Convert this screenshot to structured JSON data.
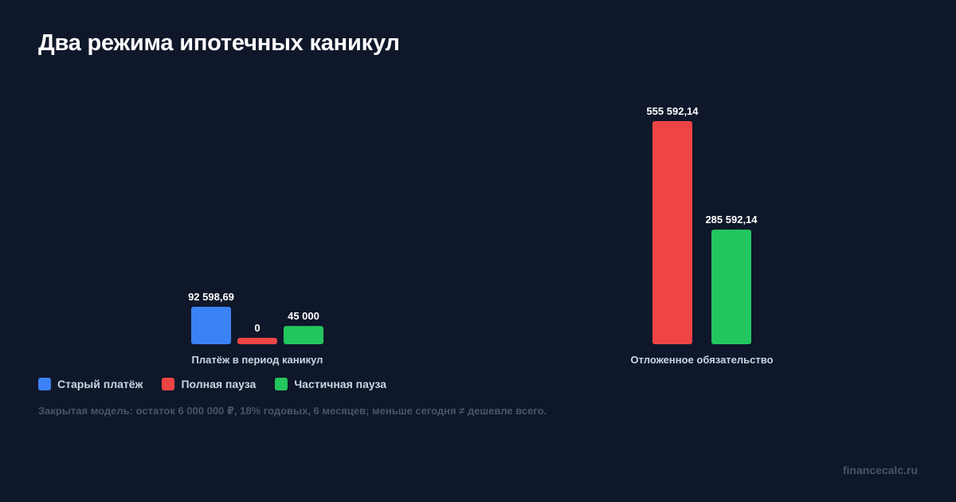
{
  "title": "Два режима ипотечных каникул",
  "note": "Закрытая модель: остаток 6 000 000 ₽, 18% годовых, 6 месяцев; меньше сегодня ≠ дешевле всего.",
  "brand": "financecalc.ru",
  "legend": [
    {
      "name": "Старый платёж",
      "color": "#3b82f6"
    },
    {
      "name": "Полная пауза",
      "color": "#ef4444"
    },
    {
      "name": "Частичная пауза",
      "color": "#22c55e"
    }
  ],
  "chart_data": {
    "type": "bar",
    "title": "Два режима ипотечных каникул",
    "groups": [
      {
        "label": "Платёж в период каникул",
        "bars": [
          {
            "series": "Старый платёж",
            "value": 92598.69,
            "label": "92 598,69",
            "color": "#3b82f6"
          },
          {
            "series": "Полная пауза",
            "value": 0,
            "label": "0",
            "color": "#ef4444"
          },
          {
            "series": "Частичная пауза",
            "value": 45000,
            "label": "45 000",
            "color": "#22c55e"
          }
        ]
      },
      {
        "label": "Отложенное обязательство",
        "bars": [
          {
            "series": "Полная пауза",
            "value": 555592.14,
            "label": "555 592,14",
            "color": "#ef4444"
          },
          {
            "series": "Частичная пауза",
            "value": 285592.14,
            "label": "285 592,14",
            "color": "#22c55e"
          }
        ]
      }
    ],
    "grid": false,
    "legend_position": "bottom-left",
    "independent_scales": true
  }
}
